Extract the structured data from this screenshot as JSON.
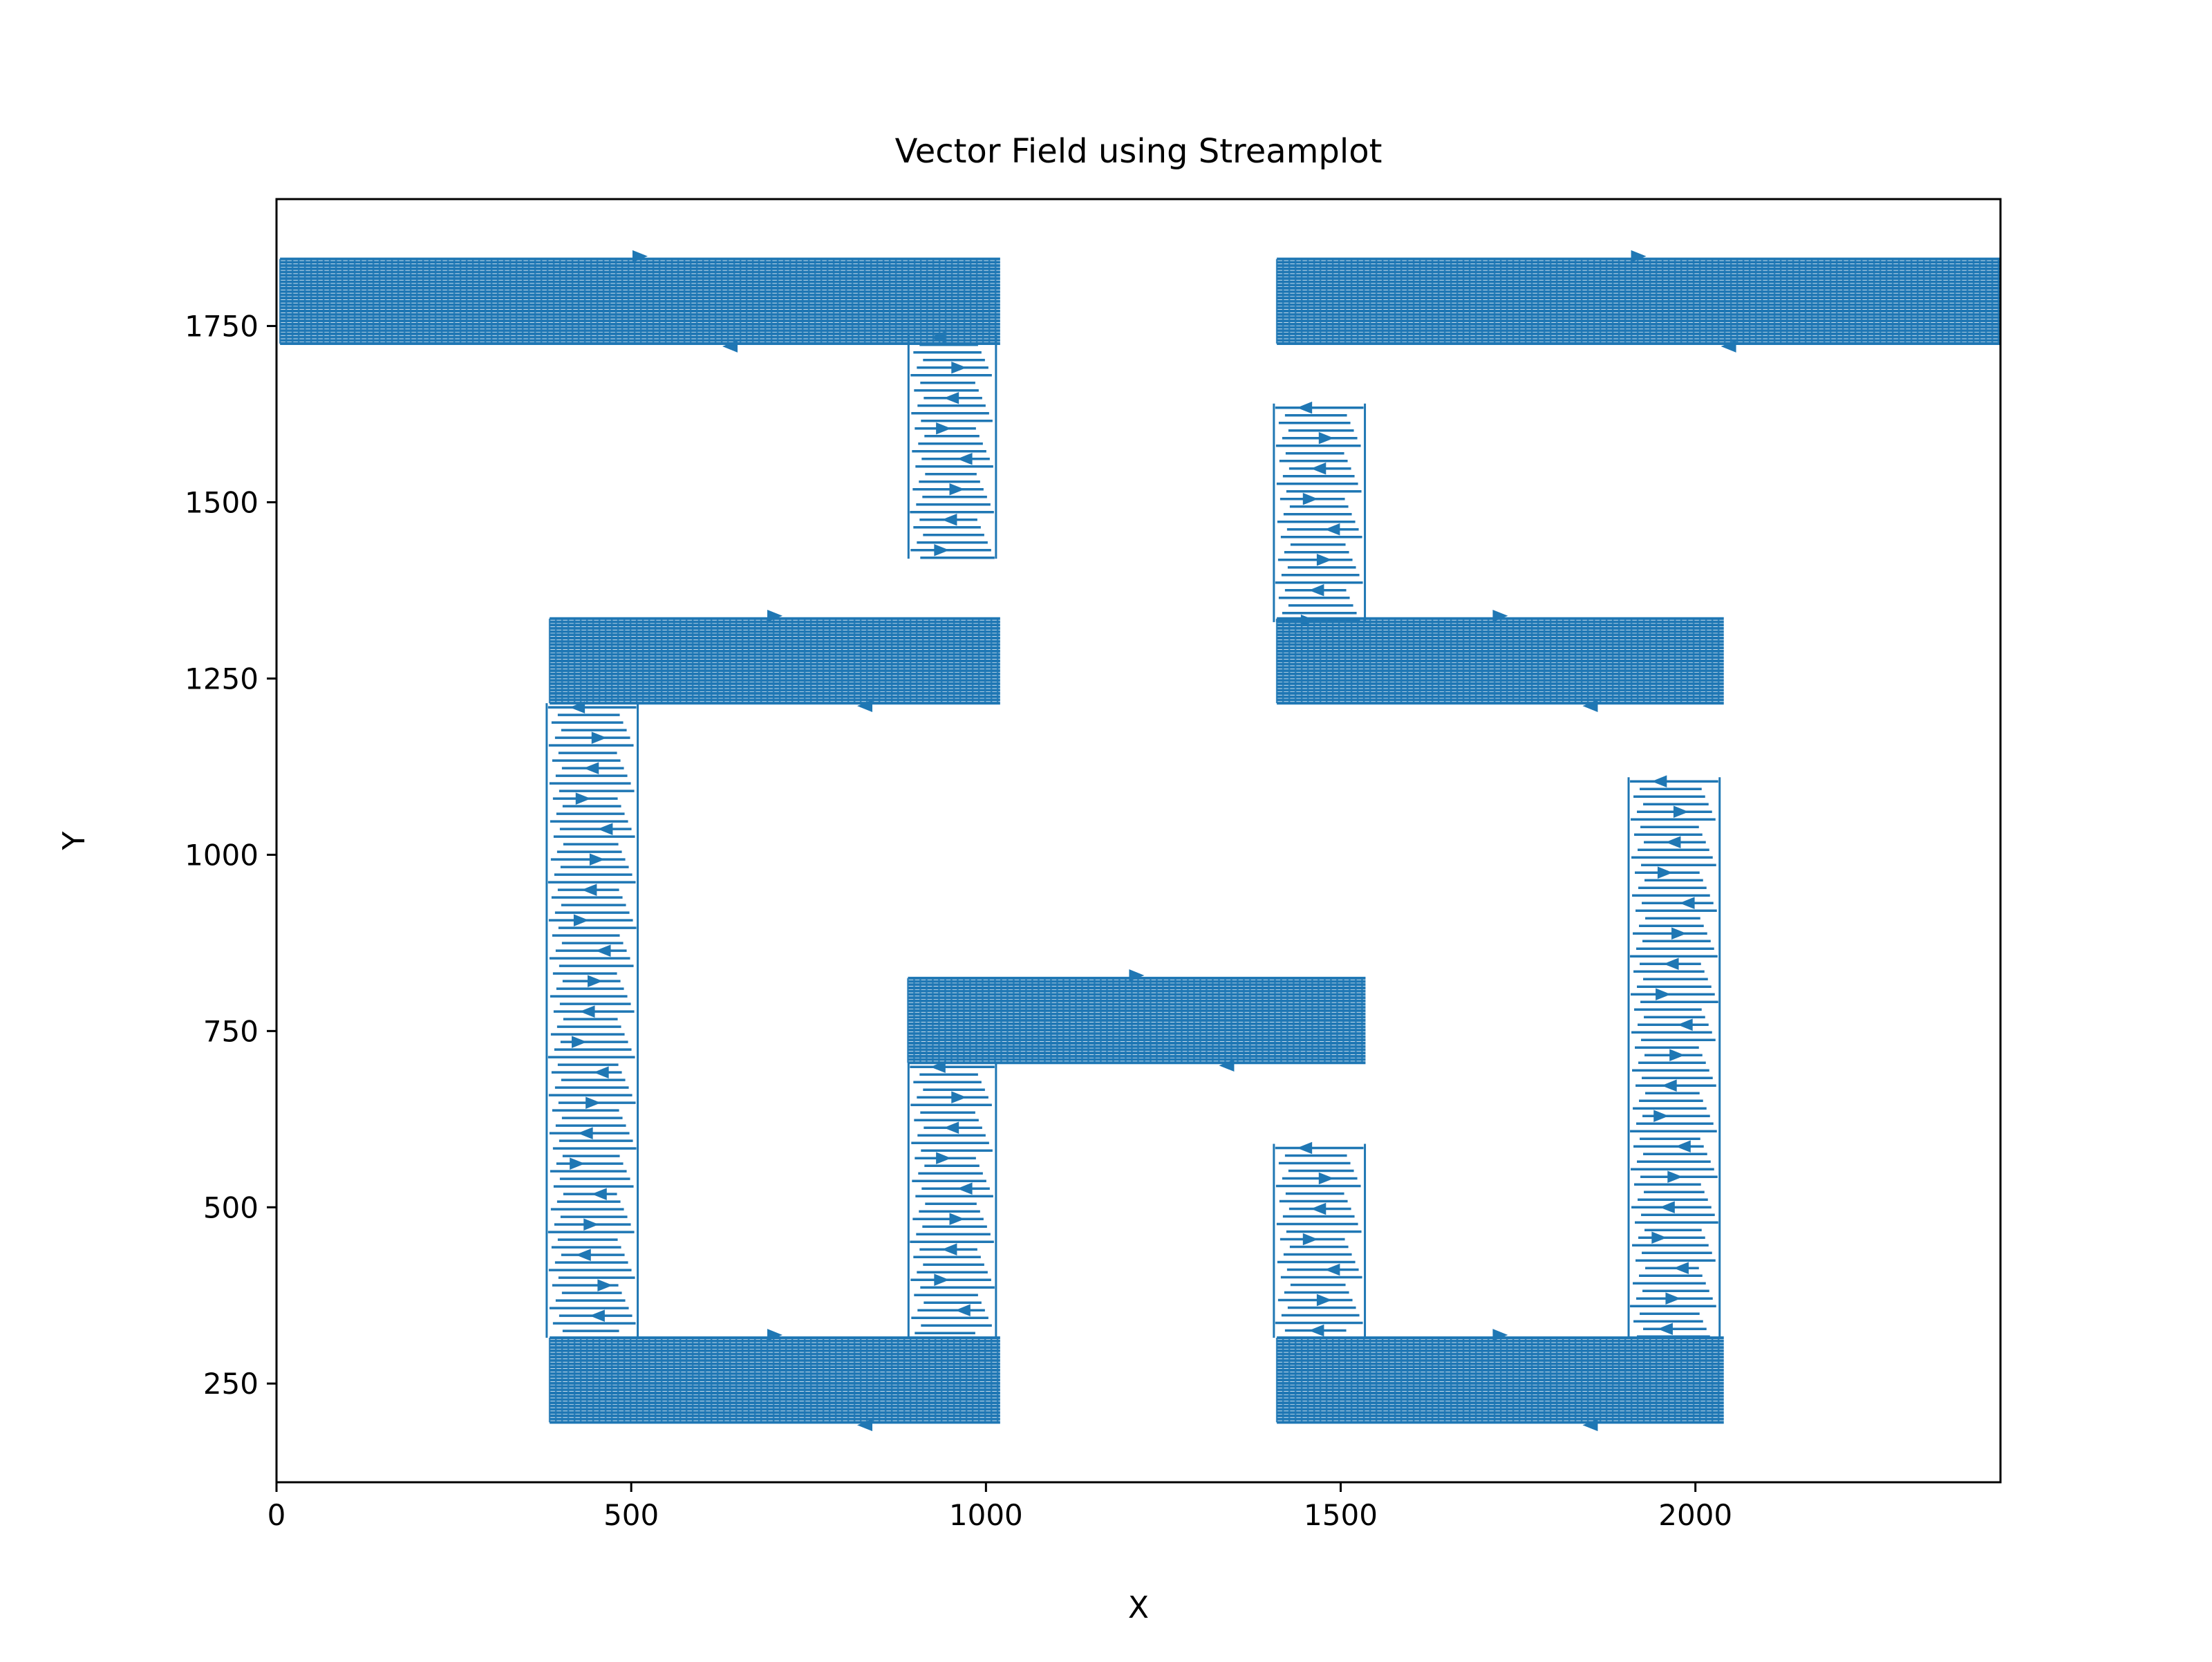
{
  "chart_data": {
    "type": "streamplot",
    "title": "Vector Field using Streamplot",
    "xlabel": "X",
    "ylabel": "Y",
    "xlim": [
      0,
      2430
    ],
    "ylim": [
      110,
      1930
    ],
    "xticks": [
      0,
      500,
      1000,
      1500,
      2000
    ],
    "yticks": [
      250,
      500,
      750,
      1000,
      1250,
      1500,
      1750
    ],
    "xtick_labels": [
      "0",
      "500",
      "1000",
      "1500",
      "2000"
    ],
    "ytick_labels": [
      "250",
      "500",
      "750",
      "1000",
      "1250",
      "1500",
      "1750"
    ],
    "grid": false,
    "series": [
      {
        "color": "#1f77b4",
        "horizontal_bands": [
          {
            "x": [
              5,
              1020
            ],
            "y": [
              1725,
              1845
            ]
          },
          {
            "x": [
              1410,
              2430
            ],
            "y": [
              1725,
              1845
            ]
          },
          {
            "x": [
              385,
              1020
            ],
            "y": [
              1215,
              1335
            ]
          },
          {
            "x": [
              1410,
              2040
            ],
            "y": [
              1215,
              1335
            ]
          },
          {
            "x": [
              890,
              1535
            ],
            "y": [
              705,
              825
            ]
          },
          {
            "x": [
              385,
              1020
            ],
            "y": [
              195,
              315
            ]
          },
          {
            "x": [
              1410,
              2040
            ],
            "y": [
              195,
              315
            ]
          }
        ],
        "vertical_bands": [
          {
            "x": [
              885,
              1020
            ],
            "y": [
              1420,
              1740
            ]
          },
          {
            "x": [
              1400,
              1540
            ],
            "y": [
              1330,
              1640
            ]
          },
          {
            "x": [
              375,
              515
            ],
            "y": [
              315,
              1215
            ]
          },
          {
            "x": [
              1900,
              2040
            ],
            "y": [
              315,
              1110
            ]
          },
          {
            "x": [
              885,
              1020
            ],
            "y": [
              315,
              705
            ]
          },
          {
            "x": [
              1400,
              1540
            ],
            "y": [
              315,
              590
            ]
          }
        ]
      }
    ]
  }
}
